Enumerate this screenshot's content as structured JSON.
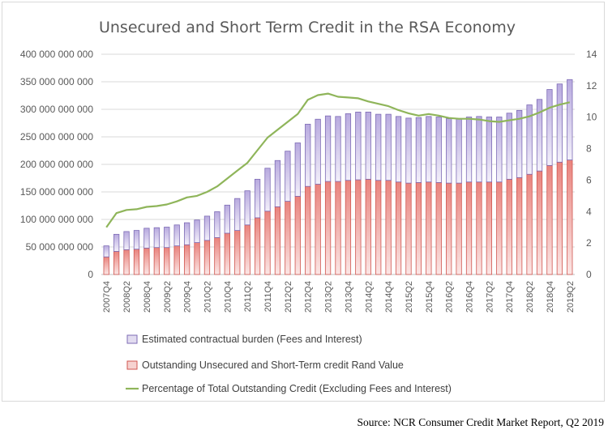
{
  "source_note": "Source: NCR Consumer Credit Market Report, Q2 2019",
  "chart_data": {
    "type": "bar",
    "stacked": true,
    "title": "Unsecured and Short Term Credit in the RSA Economy",
    "xlabel": "",
    "ylabel": "",
    "y_left": {
      "lim": [
        0,
        400000000000
      ],
      "ticks": [
        0,
        50000000000,
        100000000000,
        150000000000,
        200000000000,
        250000000000,
        300000000000,
        350000000000,
        400000000000
      ],
      "tick_labels": [
        "0",
        "50 000 000 000",
        "100 000 000 000",
        "150 000 000 000",
        "200 000 000 000",
        "250 000 000 000",
        "300 000 000 000",
        "350 000 000 000",
        "400 000 000 000"
      ]
    },
    "y_right": {
      "lim": [
        0,
        14
      ],
      "ticks": [
        0,
        2,
        4,
        6,
        8,
        10,
        12,
        14
      ],
      "tick_labels": [
        "0",
        "2",
        "4",
        "6",
        "8",
        "10",
        "12",
        "14"
      ]
    },
    "categories": [
      "2007Q4",
      "2008Q1",
      "2008Q2",
      "2008Q3",
      "2008Q4",
      "2009Q1",
      "2009Q2",
      "2009Q3",
      "2009Q4",
      "2010Q1",
      "2010Q2",
      "2010Q3",
      "2010Q4",
      "2011Q1",
      "2011Q2",
      "2011Q3",
      "2011Q4",
      "2012Q1",
      "2012Q2",
      "2012Q3",
      "2012Q4",
      "2013Q1",
      "2013Q2",
      "2013Q3",
      "2013Q4",
      "2014Q1",
      "2014Q2",
      "2014Q3",
      "2014Q4",
      "2015Q1",
      "2015Q2",
      "2015Q3",
      "2015Q4",
      "2016Q1",
      "2016Q2",
      "2016Q3",
      "2016Q4",
      "2017Q1",
      "2017Q2",
      "2017Q3",
      "2017Q4",
      "2018Q1",
      "2018Q2",
      "2018Q3",
      "2018Q4",
      "2019Q1",
      "2019Q2"
    ],
    "shown_category_labels": [
      "2007Q4",
      "2008Q2",
      "2008Q4",
      "2009Q2",
      "2009Q4",
      "2010Q2",
      "2010Q4",
      "2011Q2",
      "2011Q4",
      "2012Q2",
      "2012Q4",
      "2013Q2",
      "2013Q4",
      "2014Q2",
      "2014Q4",
      "2015Q2",
      "2015Q4",
      "2016Q2",
      "2016Q4",
      "2017Q2",
      "2017Q4",
      "2018Q2",
      "2018Q4",
      "2019Q2"
    ],
    "series": [
      {
        "name": "Estimated contractual burden (Fees and Interest)",
        "type": "bar",
        "axis": "left",
        "color": "#a99ad1",
        "values": [
          20000000000,
          31000000000,
          33000000000,
          34000000000,
          36000000000,
          36000000000,
          37000000000,
          38000000000,
          40000000000,
          41000000000,
          44000000000,
          47000000000,
          51000000000,
          58000000000,
          62000000000,
          70000000000,
          78000000000,
          84000000000,
          91000000000,
          97000000000,
          113000000000,
          118000000000,
          119000000000,
          118000000000,
          121000000000,
          123000000000,
          122000000000,
          120000000000,
          120000000000,
          119000000000,
          118000000000,
          118000000000,
          119000000000,
          119000000000,
          117000000000,
          117000000000,
          118000000000,
          119000000000,
          118000000000,
          118000000000,
          120000000000,
          122000000000,
          126000000000,
          130000000000,
          138000000000,
          142000000000,
          146000000000
        ]
      },
      {
        "name": "Outstanding Unsecured and Short-Term credit Rand Value",
        "type": "bar",
        "axis": "left",
        "color": "#f2b8b5",
        "values": [
          32000000000,
          42000000000,
          45000000000,
          46000000000,
          48000000000,
          49000000000,
          49000000000,
          52000000000,
          54000000000,
          58000000000,
          62000000000,
          67000000000,
          75000000000,
          80000000000,
          90000000000,
          103000000000,
          115000000000,
          123000000000,
          133000000000,
          142000000000,
          160000000000,
          164000000000,
          169000000000,
          169000000000,
          171000000000,
          172000000000,
          173000000000,
          171000000000,
          171000000000,
          168000000000,
          166000000000,
          167000000000,
          168000000000,
          167000000000,
          166000000000,
          166000000000,
          168000000000,
          168000000000,
          168000000000,
          168000000000,
          173000000000,
          176000000000,
          182000000000,
          188000000000,
          198000000000,
          204000000000,
          208000000000
        ]
      },
      {
        "name": "Percentage of Total Outstanding Credit (Excluding Fees and Interest)",
        "type": "line",
        "axis": "right",
        "color": "#8fb55a",
        "values": [
          3.0,
          3.9,
          4.1,
          4.15,
          4.3,
          4.35,
          4.45,
          4.65,
          4.9,
          5.0,
          5.25,
          5.6,
          6.1,
          6.6,
          7.1,
          7.9,
          8.7,
          9.2,
          9.7,
          10.2,
          11.1,
          11.4,
          11.5,
          11.3,
          11.25,
          11.2,
          11.0,
          10.85,
          10.7,
          10.45,
          10.25,
          10.1,
          10.2,
          10.1,
          9.95,
          9.9,
          9.9,
          9.85,
          9.75,
          9.7,
          9.8,
          9.9,
          10.05,
          10.3,
          10.6,
          10.8,
          10.95
        ]
      }
    ],
    "legend_position": "bottom",
    "grid": true
  }
}
